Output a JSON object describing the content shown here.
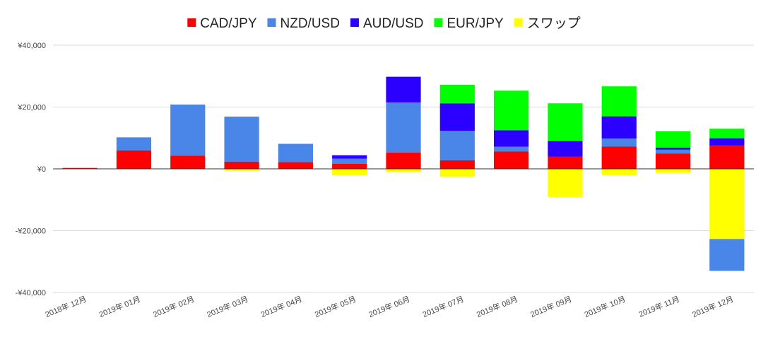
{
  "chart_data": {
    "type": "bar",
    "stacked": true,
    "categories": [
      "2018年 12月",
      "2019年 01月",
      "2019年 02月",
      "2019年 03月",
      "2019年 04月",
      "2019年 05月",
      "2019年 06月",
      "2019年 07月",
      "2019年 08月",
      "2019年 09月",
      "2019年 10月",
      "2019年 11月",
      "2019年 12月"
    ],
    "series": [
      {
        "name": "CAD/JPY",
        "color": "#ff0000",
        "values": [
          300,
          6000,
          4300,
          2300,
          2200,
          1600,
          5300,
          2800,
          5600,
          4000,
          7200,
          5000,
          7500
        ]
      },
      {
        "name": "NZD/USD",
        "color": "#4a86e8",
        "values": [
          0,
          4200,
          16500,
          14600,
          5900,
          1700,
          16200,
          9500,
          1600,
          0,
          2600,
          1200,
          0
        ]
      },
      {
        "name": "AUD/USD",
        "color": "#2b00ff",
        "values": [
          0,
          0,
          0,
          0,
          0,
          1100,
          8300,
          8900,
          5300,
          5000,
          7200,
          700,
          2400
        ]
      },
      {
        "name": "EUR/JPY",
        "color": "#00ff00",
        "values": [
          0,
          0,
          0,
          0,
          0,
          0,
          0,
          6000,
          12800,
          12200,
          9700,
          5300,
          3100
        ]
      },
      {
        "name": "スワップ",
        "color": "#ffff00",
        "values": [
          0,
          0,
          0,
          -500,
          0,
          -2100,
          -1000,
          -2600,
          0,
          -9100,
          -2100,
          -1300,
          -22700
        ]
      },
      {
        "name": "NZD/USD",
        "color": "#4a86e8",
        "values": [
          0,
          0,
          0,
          0,
          0,
          0,
          0,
          0,
          0,
          0,
          0,
          0,
          -10300
        ],
        "legend": false
      }
    ],
    "ylim": [
      -40000,
      40000
    ],
    "yticks": [
      40000,
      20000,
      0,
      -20000,
      -40000
    ],
    "ytick_labels": [
      "¥40,000",
      "¥20,000",
      "¥0",
      "-¥20,000",
      "-¥40,000"
    ],
    "title": "",
    "xlabel": "",
    "ylabel": "",
    "legend_position": "top",
    "grid": true
  }
}
